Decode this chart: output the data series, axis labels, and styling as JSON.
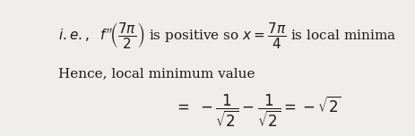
{
  "background_color": "#f0eeea",
  "text_color": "#1a1a1a",
  "line2": "Hence, local minimum value",
  "figsize": [
    4.63,
    1.52
  ],
  "dpi": 100
}
